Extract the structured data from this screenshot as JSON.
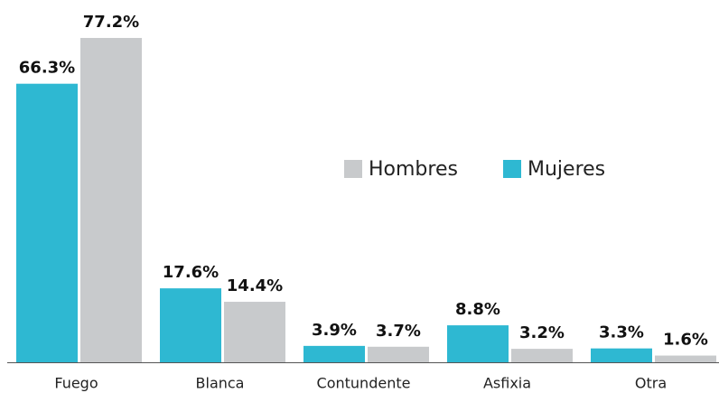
{
  "chart_data": {
    "type": "bar",
    "categories": [
      "Fuego",
      "Blanca",
      "Contundente",
      "Asfixia",
      "Otra"
    ],
    "series": [
      {
        "name": "Mujeres",
        "color": "#2eb8d2",
        "values": [
          66.3,
          17.6,
          3.9,
          8.8,
          3.3
        ],
        "value_labels": [
          "66.3%",
          "17.6%",
          "3.9%",
          "8.8%",
          "3.3%"
        ]
      },
      {
        "name": "Hombres",
        "color": "#c8cacc",
        "values": [
          77.2,
          14.4,
          3.7,
          3.2,
          1.6
        ],
        "value_labels": [
          "77.2%",
          "14.4%",
          "3.7%",
          "3.2%",
          "1.6%"
        ]
      }
    ]
  }
}
